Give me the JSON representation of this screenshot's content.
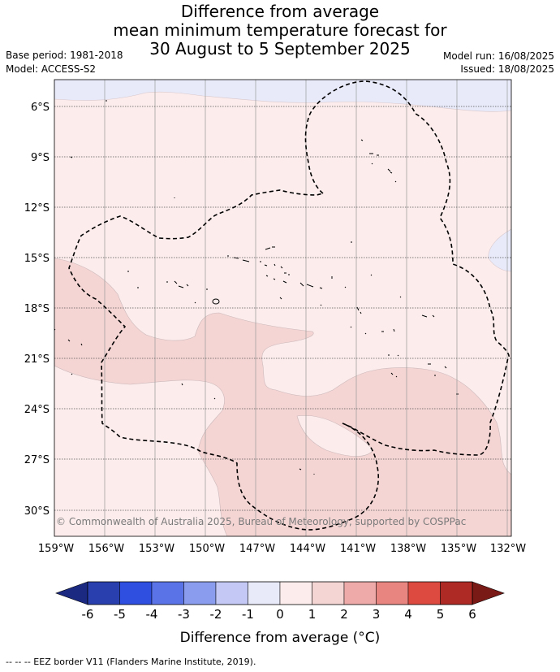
{
  "title": {
    "line1": "Difference from average",
    "line2": "mean minimum temperature forecast for",
    "line3": "30 August to 5 September 2025"
  },
  "meta": {
    "base_period": "Base period: 1981-2018",
    "model": "Model: ACCESS-S2",
    "model_run": "Model run: 16/08/2025",
    "issued": "Issued: 18/08/2025"
  },
  "map": {
    "lat_labels": [
      "6°S",
      "9°S",
      "12°S",
      "15°S",
      "18°S",
      "21°S",
      "24°S",
      "27°S",
      "30°S"
    ],
    "lon_labels": [
      "159°W",
      "156°W",
      "153°W",
      "150°W",
      "147°W",
      "144°W",
      "141°W",
      "138°W",
      "135°W",
      "132°W"
    ],
    "copyright": "© Commonwealth of Australia 2025, Bureau of Meteorology, supported by COSPPac"
  },
  "colorbar": {
    "ticks": [
      "-6",
      "-5",
      "-4",
      "-3",
      "-2",
      "-1",
      "0",
      "1",
      "2",
      "3",
      "4",
      "5",
      "6"
    ],
    "colors": [
      "#2a3fae",
      "#2f4fe0",
      "#5a73e6",
      "#8a9cee",
      "#c3c8f5",
      "#e8eafa",
      "#fcecec",
      "#f4d5d4",
      "#eeaaa8",
      "#e98580",
      "#dd4a40",
      "#ae2a24"
    ],
    "under_color": "#1b2a80",
    "over_color": "#7a1a16",
    "label": "Difference from average (°C)"
  },
  "legend": {
    "eez_note": "--  --  -- EEZ border V11 (Flanders Marine Institute, 2019)."
  }
}
